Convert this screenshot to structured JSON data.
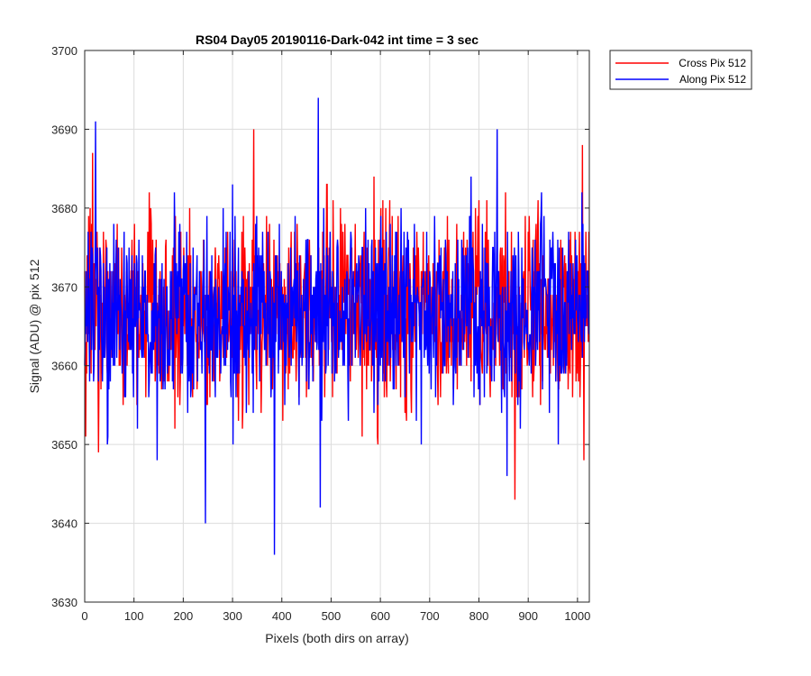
{
  "chart_data": {
    "type": "line",
    "title": "RS04 Day05 20190116-Dark-042 int time = 3 sec",
    "xlabel": "Pixels (both dirs on array)",
    "ylabel": "Signal (ADU) @ pix 512",
    "xlim": [
      0,
      1024
    ],
    "ylim": [
      3630,
      3700
    ],
    "xticks": [
      0,
      100,
      200,
      300,
      400,
      500,
      600,
      700,
      800,
      900,
      1000
    ],
    "yticks": [
      3630,
      3640,
      3650,
      3660,
      3670,
      3680,
      3690,
      3700
    ],
    "xtick_labels": [
      "0",
      "100",
      "200",
      "300",
      "400",
      "500",
      "600",
      "700",
      "800",
      "900",
      "1000"
    ],
    "ytick_labels": [
      "3630",
      "3640",
      "3650",
      "3660",
      "3670",
      "3680",
      "3690",
      "3700"
    ],
    "grid": true,
    "legend_position": "outside-top-right",
    "colors": {
      "cross": "#ff0000",
      "along": "#0000ff",
      "axis": "#262626",
      "grid": "#dcdcdc"
    },
    "series": [
      {
        "name": "Cross Pix 512",
        "color": "#ff0000",
        "summary": {
          "mean": 3667,
          "std": 6,
          "min": 3643,
          "max": 3690
        },
        "extremes": [
          {
            "x": 16,
            "y": 3687
          },
          {
            "x": 28,
            "y": 3649
          },
          {
            "x": 343,
            "y": 3690
          },
          {
            "x": 873,
            "y": 3643
          },
          {
            "x": 1010,
            "y": 3688
          },
          {
            "x": 1013,
            "y": 3648
          }
        ]
      },
      {
        "name": "Along Pix 512",
        "color": "#0000ff",
        "summary": {
          "mean": 3667,
          "std": 6,
          "min": 3636,
          "max": 3694
        },
        "extremes": [
          {
            "x": 22,
            "y": 3691
          },
          {
            "x": 245,
            "y": 3640
          },
          {
            "x": 385,
            "y": 3636
          },
          {
            "x": 474,
            "y": 3694
          },
          {
            "x": 478,
            "y": 3642
          },
          {
            "x": 837,
            "y": 3690
          }
        ]
      }
    ]
  }
}
